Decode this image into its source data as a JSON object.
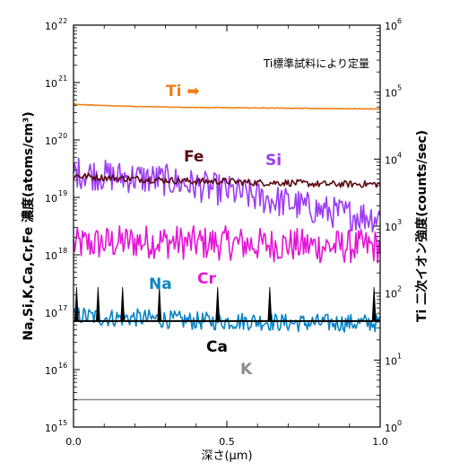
{
  "chart_data": {
    "type": "line",
    "xlabel": "深さ(μm)",
    "ylabel_left": "Na,Si,K,Ca,Cr,Fe 濃度(atoms/cm³)",
    "ylabel_right": "Ti 二次イオン強度(counts/sec)",
    "annotation": "Ti標準試料により定量",
    "xlim": [
      0,
      1
    ],
    "ylim_left": [
      1000000000000000.0,
      1e+22
    ],
    "ylim_right": [
      1,
      1000000.0
    ],
    "scale_left": "log",
    "scale_right": "log",
    "x_ticks": [
      "0.0",
      "0.5",
      "1.0"
    ],
    "x_tick_values": [
      0,
      0.5,
      1
    ],
    "left_tick_base": "10",
    "left_tick_exponents": [
      "15",
      "16",
      "17",
      "18",
      "19",
      "20",
      "21",
      "22"
    ],
    "right_tick_base": "10",
    "right_tick_exponents": [
      "0",
      "1",
      "2",
      "3",
      "4",
      "5",
      "6"
    ],
    "series": [
      {
        "name": "Ti",
        "label": "Ti ➡",
        "axis": "right",
        "color": "#f07f12",
        "x": [
          0,
          0.1,
          0.2,
          0.3,
          0.4,
          0.5,
          0.6,
          0.7,
          0.8,
          0.9,
          1.0
        ],
        "y": [
          66000,
          63000,
          61000,
          60000,
          59000,
          58500,
          58000,
          57500,
          57000,
          56500,
          56000
        ]
      },
      {
        "name": "Fe",
        "label": "Fe",
        "axis": "left",
        "color": "#5a0a12",
        "x": [
          0,
          0.1,
          0.2,
          0.3,
          0.4,
          0.5,
          0.6,
          0.7,
          0.8,
          0.9,
          1.0
        ],
        "y": [
          2.4e+19,
          2.2e+19,
          2.1e+19,
          2e+19,
          1.9e+19,
          1.9e+19,
          1.8e+19,
          1.8e+19,
          1.7e+19,
          1.7e+19,
          1.7e+19
        ]
      },
      {
        "name": "Si",
        "label": "Si",
        "axis": "left",
        "color": "#9b3cf2",
        "x": [
          0,
          0.1,
          0.2,
          0.3,
          0.4,
          0.5,
          0.6,
          0.7,
          0.8,
          0.9,
          1.0
        ],
        "y": [
          2.8e+19,
          2.4e+19,
          2.2e+19,
          2e+19,
          1.6e+19,
          1.3e+19,
          1e+19,
          8e+18,
          6e+18,
          5e+18,
          4.5e+18
        ]
      },
      {
        "name": "Cr",
        "label": "Cr",
        "axis": "left",
        "color": "#e614d8",
        "x": [
          0,
          0.1,
          0.2,
          0.3,
          0.4,
          0.5,
          0.6,
          0.7,
          0.8,
          0.9,
          1.0
        ],
        "y": [
          1.5e+18,
          1.6e+18,
          1.7e+18,
          1.7e+18,
          1.6e+18,
          1.6e+18,
          1.5e+18,
          1.5e+18,
          1.4e+18,
          1.4e+18,
          1.4e+18
        ]
      },
      {
        "name": "Na",
        "label": "Na",
        "axis": "left",
        "color": "#0a84c4",
        "x": [
          0,
          0.1,
          0.2,
          0.3,
          0.4,
          0.5,
          0.6,
          0.7,
          0.8,
          0.9,
          1.0
        ],
        "y": [
          9e+16,
          8e+16,
          8e+16,
          7.5e+16,
          7e+16,
          7e+16,
          7e+16,
          6.5e+16,
          6.5e+16,
          6.5e+16,
          6.5e+16
        ]
      },
      {
        "name": "Ca",
        "label": "Ca",
        "axis": "left",
        "color": "#000000",
        "x": [
          0,
          0.1,
          0.2,
          0.3,
          0.4,
          0.5,
          0.6,
          0.7,
          0.8,
          0.9,
          1.0
        ],
        "y": [
          7e+16,
          7e+16,
          7e+16,
          7e+16,
          7e+16,
          7e+16,
          7e+16,
          7e+16,
          7e+16,
          7e+16,
          7e+16
        ]
      },
      {
        "name": "K",
        "label": "K",
        "axis": "left",
        "color": "#8c8c8c",
        "x": [
          0,
          0.1,
          0.2,
          0.3,
          0.4,
          0.5,
          0.6,
          0.7,
          0.8,
          0.9,
          1.0
        ],
        "y": [
          3000000000000000.0,
          3000000000000000.0,
          3000000000000000.0,
          3000000000000000.0,
          3000000000000000.0,
          3000000000000000.0,
          3000000000000000.0,
          3000000000000000.0,
          3000000000000000.0,
          3000000000000000.0,
          3000000000000000.0
        ]
      }
    ]
  }
}
